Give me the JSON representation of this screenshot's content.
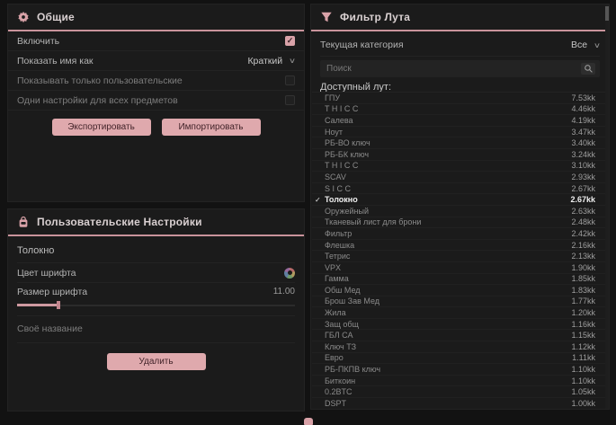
{
  "general": {
    "title": "Общие",
    "enable_label": "Включить",
    "enable_checked": true,
    "show_name_label": "Показать имя как",
    "show_name_value": "Краткий",
    "only_user_label": "Показывать только пользовательские",
    "only_user_checked": false,
    "same_settings_label": "Одни настройки для всех предметов",
    "same_settings_checked": false,
    "export_label": "Экспортировать",
    "import_label": "Импортировать"
  },
  "user_settings": {
    "title": "Пользовательские Настройки",
    "item_name": "Толокно",
    "font_color_label": "Цвет шрифта",
    "font_size_label": "Размер шрифта",
    "font_size_value": "11.00",
    "custom_name_placeholder": "Своё название",
    "delete_label": "Удалить"
  },
  "loot": {
    "title": "Фильтр Лута",
    "category_label": "Текущая категория",
    "category_value": "Все",
    "search_placeholder": "Поиск",
    "available_label": "Доступный лут:",
    "items": [
      {
        "name": "ГПУ",
        "value": "7.53kk",
        "selected": false
      },
      {
        "name": "T H I C C",
        "value": "4.46kk",
        "selected": false
      },
      {
        "name": "Салева",
        "value": "4.19kk",
        "selected": false
      },
      {
        "name": "Ноут",
        "value": "3.47kk",
        "selected": false
      },
      {
        "name": "РБ-ВО ключ",
        "value": "3.40kk",
        "selected": false
      },
      {
        "name": "РБ-БК ключ",
        "value": "3.24kk",
        "selected": false
      },
      {
        "name": "T H I C C",
        "value": "3.10kk",
        "selected": false
      },
      {
        "name": "SCAV",
        "value": "2.93kk",
        "selected": false
      },
      {
        "name": "S I C C",
        "value": "2.67kk",
        "selected": false
      },
      {
        "name": "Толокно",
        "value": "2.67kk",
        "selected": true
      },
      {
        "name": "Оружейный",
        "value": "2.63kk",
        "selected": false
      },
      {
        "name": "Тканевый лист для брони",
        "value": "2.48kk",
        "selected": false
      },
      {
        "name": "Фильтр",
        "value": "2.42kk",
        "selected": false
      },
      {
        "name": "Флешка",
        "value": "2.16kk",
        "selected": false
      },
      {
        "name": "Тетрис",
        "value": "2.13kk",
        "selected": false
      },
      {
        "name": "VPX",
        "value": "1.90kk",
        "selected": false
      },
      {
        "name": "Гамма",
        "value": "1.85kk",
        "selected": false
      },
      {
        "name": "Обш Мед",
        "value": "1.83kk",
        "selected": false
      },
      {
        "name": "Брош Зав Мед",
        "value": "1.77kk",
        "selected": false
      },
      {
        "name": "Жила",
        "value": "1.20kk",
        "selected": false
      },
      {
        "name": "Защ общ",
        "value": "1.16kk",
        "selected": false
      },
      {
        "name": "ГБЛ СА",
        "value": "1.15kk",
        "selected": false
      },
      {
        "name": "Ключ ТЗ",
        "value": "1.12kk",
        "selected": false
      },
      {
        "name": "Евро",
        "value": "1.11kk",
        "selected": false
      },
      {
        "name": "РБ-ПКПВ ключ",
        "value": "1.10kk",
        "selected": false
      },
      {
        "name": "Биткоин",
        "value": "1.10kk",
        "selected": false
      },
      {
        "name": "0.2BTC",
        "value": "1.05kk",
        "selected": false
      },
      {
        "name": "DSPT",
        "value": "1.00kk",
        "selected": false
      }
    ]
  },
  "colors": {
    "accent": "#c9939b",
    "button": "#dfa9ad",
    "panel_bg": "#1b1b1b",
    "page_bg": "#121212"
  }
}
